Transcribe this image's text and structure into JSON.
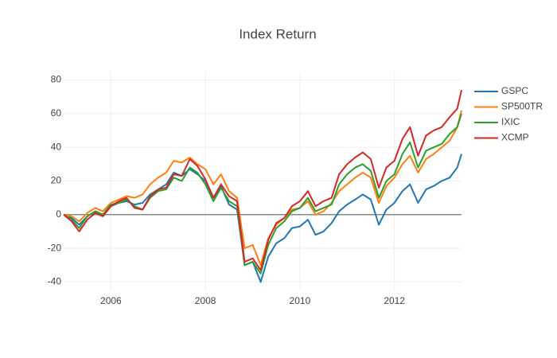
{
  "chart_data": {
    "type": "line",
    "title": "Index Return",
    "x": [
      2005,
      2005.17,
      2005.33,
      2005.5,
      2005.67,
      2005.83,
      2006,
      2006.17,
      2006.33,
      2006.5,
      2006.67,
      2006.83,
      2007,
      2007.17,
      2007.33,
      2007.5,
      2007.67,
      2007.83,
      2008,
      2008.17,
      2008.33,
      2008.5,
      2008.67,
      2008.83,
      2009,
      2009.17,
      2009.33,
      2009.5,
      2009.67,
      2009.83,
      2010,
      2010.17,
      2010.33,
      2010.5,
      2010.67,
      2010.83,
      2011,
      2011.17,
      2011.33,
      2011.5,
      2011.67,
      2011.83,
      2012,
      2012.17,
      2012.33,
      2012.5,
      2012.67,
      2012.83,
      2013,
      2013.17,
      2013.33,
      2013.42
    ],
    "series": [
      {
        "name": "GSPC",
        "color": "#1f77b4",
        "values": [
          0,
          -2,
          -6,
          -1,
          2,
          0,
          5,
          7,
          8,
          6,
          7,
          12,
          15,
          18,
          25,
          23,
          27,
          24,
          20,
          10,
          17,
          6,
          3,
          -30,
          -28,
          -40,
          -25,
          -17,
          -14,
          -8,
          -7,
          -3,
          -12,
          -10,
          -5,
          2,
          6,
          9,
          12,
          9,
          -6,
          3,
          7,
          14,
          18,
          7,
          15,
          17,
          20,
          22,
          28,
          36
        ]
      },
      {
        "name": "SP500TR",
        "color": "#ff7f0e",
        "values": [
          0,
          -1,
          -4,
          1,
          4,
          2,
          7,
          9,
          11,
          10,
          12,
          18,
          22,
          25,
          32,
          31,
          34,
          30,
          27,
          18,
          24,
          14,
          10,
          -20,
          -18,
          -30,
          -14,
          -6,
          -2,
          3,
          4,
          8,
          0,
          2,
          7,
          14,
          18,
          22,
          25,
          22,
          7,
          17,
          22,
          30,
          35,
          25,
          33,
          36,
          40,
          44,
          52,
          62
        ]
      },
      {
        "name": "IXIC",
        "color": "#2ca02c",
        "values": [
          0,
          -3,
          -8,
          -1,
          2,
          0,
          6,
          7,
          9,
          5,
          3,
          10,
          14,
          15,
          22,
          20,
          28,
          25,
          18,
          8,
          16,
          8,
          5,
          -30,
          -28,
          -35,
          -18,
          -8,
          -4,
          2,
          4,
          10,
          2,
          4,
          6,
          18,
          24,
          28,
          30,
          26,
          10,
          20,
          24,
          36,
          43,
          28,
          38,
          40,
          42,
          48,
          52,
          60
        ]
      },
      {
        "name": "XCMP",
        "color": "#d62728",
        "values": [
          0,
          -4,
          -10,
          -3,
          1,
          -1,
          5,
          8,
          10,
          4,
          3,
          11,
          15,
          16,
          24,
          23,
          33,
          29,
          21,
          10,
          18,
          11,
          8,
          -28,
          -26,
          -33,
          -15,
          -5,
          -2,
          5,
          8,
          14,
          5,
          8,
          10,
          24,
          30,
          34,
          37,
          33,
          16,
          28,
          32,
          45,
          52,
          35,
          47,
          50,
          52,
          58,
          63,
          74
        ]
      }
    ],
    "xlim": [
      2005,
      2013.42
    ],
    "xticks": [
      2006,
      2008,
      2010,
      2012
    ],
    "ylim": [
      -45,
      85
    ],
    "yticks": [
      -40,
      -20,
      0,
      20,
      40,
      60,
      80
    ],
    "grid": true,
    "zeroline": true,
    "legend": "right"
  }
}
